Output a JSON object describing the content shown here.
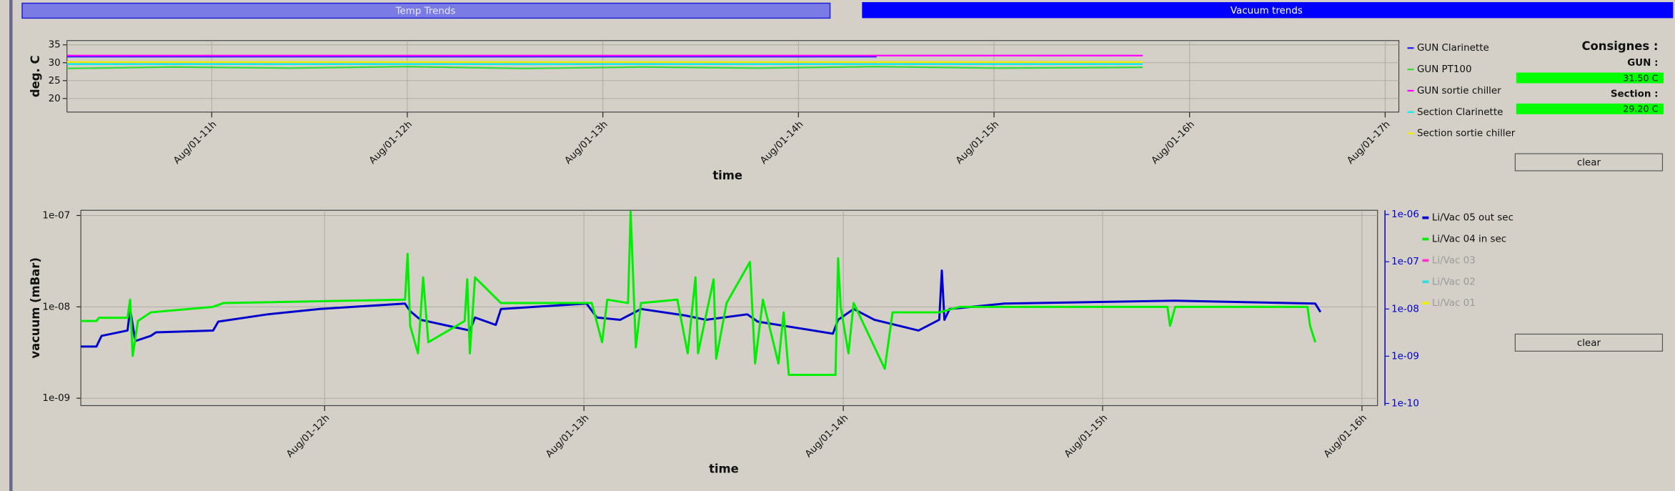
{
  "tabs": [
    "Temp Trends",
    "Vacuum trends"
  ],
  "setpoints": {
    "title": "Consignes :",
    "items": [
      {
        "label": "GUN :",
        "value": "31.50 C"
      },
      {
        "label": "Section :",
        "value": "29.20 C"
      }
    ]
  },
  "buttons": [
    "clear",
    "clear"
  ],
  "chart_data": [
    {
      "type": "line",
      "ylabel": "deg. C",
      "xlabel": "time",
      "grid": true,
      "xlim": [
        10.26,
        17.07
      ],
      "ylim": [
        16.2,
        36.2
      ],
      "yticks": [
        20,
        25,
        30,
        35
      ],
      "xticks": [
        {
          "value": 11,
          "label": "Aug/01-11h"
        },
        {
          "value": 12,
          "label": "Aug/01-12h"
        },
        {
          "value": 13,
          "label": "Aug/01-13h"
        },
        {
          "value": 14,
          "label": "Aug/01-14h"
        },
        {
          "value": 15,
          "label": "Aug/01-15h"
        },
        {
          "value": 16,
          "label": "Aug/01-16h"
        },
        {
          "value": 17,
          "label": "Aug/01-17h"
        }
      ],
      "series": [
        {
          "name": "GUN Clarinette",
          "color": "#2020ff",
          "x": [
            10.26,
            14.4
          ],
          "values": [
            31.7,
            31.7
          ]
        },
        {
          "name": "GUN PT100",
          "color": "#33dd33",
          "x": [
            10.26,
            10.8,
            11.4,
            12,
            12.6,
            13.2,
            13.8,
            14.4,
            15,
            15.76
          ],
          "values": [
            28.4,
            28.8,
            28.5,
            28.9,
            28.4,
            28.8,
            28.5,
            28.9,
            28.5,
            28.7
          ]
        },
        {
          "name": "GUN sortie chiller",
          "color": "#ff00ff",
          "x": [
            10.26,
            15.76
          ],
          "values": [
            32.0,
            32.0
          ]
        },
        {
          "name": "Section Clarinette",
          "color": "#00eeee",
          "x": [
            10.26,
            15.76
          ],
          "values": [
            29.6,
            29.6
          ]
        },
        {
          "name": "Section sortie chiller",
          "color": "#eeee00",
          "x": [
            10.26,
            15.76
          ],
          "values": [
            30.2,
            30.2
          ]
        }
      ]
    },
    {
      "type": "line",
      "ylabel": "vacuum (mBar)",
      "xlabel": "time",
      "grid": true,
      "ylog": true,
      "y2log": true,
      "xlim": [
        11.06,
        16.06
      ],
      "ylim": [
        8.3e-10,
        1.14e-07
      ],
      "y2lim": [
        9e-11,
        1.23e-06
      ],
      "yticks": [
        {
          "value": 1e-09,
          "label": "1e-09"
        },
        {
          "value": 1e-08,
          "label": "1e-08"
        },
        {
          "value": 1e-07,
          "label": "1e-07"
        }
      ],
      "y2ticks": [
        {
          "value": 1e-10,
          "label": "1e-10"
        },
        {
          "value": 1e-09,
          "label": "1e-09"
        },
        {
          "value": 1e-08,
          "label": "1e-08"
        },
        {
          "value": 1e-07,
          "label": "1e-07"
        },
        {
          "value": 1e-06,
          "label": "1e-06"
        }
      ],
      "y2color": "#0000cc",
      "xticks": [
        {
          "value": 12,
          "label": "Aug/01-12h"
        },
        {
          "value": 13,
          "label": "Aug/01-13h"
        },
        {
          "value": 14,
          "label": "Aug/01-14h"
        },
        {
          "value": 15,
          "label": "Aug/01-15h"
        },
        {
          "value": 16,
          "label": "Aug/01-16h"
        }
      ],
      "series": [
        {
          "name": "Li/Vac 05 out sec",
          "color": "#0000cc",
          "axis": "y2",
          "x": [
            11.06,
            11.12,
            11.14,
            11.24,
            11.25,
            11.27,
            11.33,
            11.35,
            11.57,
            11.59,
            11.78,
            11.98,
            12.31,
            12.33,
            12.37,
            12.56,
            12.58,
            12.66,
            12.68,
            13.01,
            13.05,
            13.14,
            13.22,
            13.39,
            13.47,
            13.63,
            13.67,
            13.96,
            13.98,
            14.04,
            14.12,
            14.29,
            14.37,
            14.38,
            14.39,
            14.41,
            14.62,
            15.28,
            15.82,
            15.84
          ],
          "values": [
            1.6e-09,
            1.6e-09,
            2.7e-09,
            3.5e-09,
            1e-08,
            2.1e-09,
            2.7e-09,
            3.2e-09,
            3.5e-09,
            5.4e-09,
            7.7e-09,
            1e-08,
            1.3e-08,
            9e-09,
            5.9e-09,
            3.5e-09,
            6.6e-09,
            4.6e-09,
            1e-08,
            1.3e-08,
            6.6e-09,
            5.9e-09,
            1e-08,
            7.3e-09,
            5.9e-09,
            7.7e-09,
            5.4e-09,
            3e-09,
            5.9e-09,
            1e-08,
            5.9e-09,
            3.5e-09,
            5.9e-09,
            6.5e-08,
            5.9e-09,
            1e-08,
            1.3e-08,
            1.5e-08,
            1.3e-08,
            8.6e-09
          ]
        },
        {
          "name": "Li/Vac 04 in sec",
          "color": "#00ee00",
          "x": [
            11.06,
            11.12,
            11.13,
            11.24,
            11.25,
            11.26,
            11.28,
            11.33,
            11.57,
            11.61,
            12.31,
            12.32,
            12.33,
            12.36,
            12.38,
            12.4,
            12.54,
            12.55,
            12.56,
            12.58,
            12.68,
            13.03,
            13.07,
            13.09,
            13.17,
            13.18,
            13.2,
            13.22,
            13.36,
            13.4,
            13.43,
            13.44,
            13.5,
            13.51,
            13.55,
            13.64,
            13.66,
            13.69,
            13.75,
            13.77,
            13.79,
            13.97,
            13.98,
            13.99,
            14.02,
            14.04,
            14.16,
            14.19,
            14.37,
            14.45,
            15.25,
            15.26,
            15.28,
            15.79,
            15.8,
            15.82
          ],
          "values": [
            7e-09,
            7e-09,
            7.6e-09,
            7.6e-09,
            1.2e-08,
            2.9e-09,
            7e-09,
            8.7e-09,
            1e-08,
            1.1e-08,
            1.2e-08,
            3.8e-08,
            6.2e-09,
            3.1e-09,
            2.1e-08,
            4.1e-09,
            7e-09,
            2e-08,
            3.1e-09,
            2.1e-08,
            1.1e-08,
            1.1e-08,
            4.1e-09,
            1.2e-08,
            1.1e-08,
            1.1e-07,
            3.6e-09,
            1.1e-08,
            1.2e-08,
            3.1e-09,
            2.1e-08,
            3.1e-09,
            2e-08,
            2.7e-09,
            1.1e-08,
            3.1e-08,
            2.4e-09,
            1.2e-08,
            2.4e-09,
            8.7e-09,
            1.8e-09,
            1.8e-09,
            3.4e-08,
            1e-08,
            3.1e-09,
            1.1e-08,
            2.1e-09,
            8.7e-09,
            8.7e-09,
            1e-08,
            1e-08,
            6.2e-09,
            1e-08,
            1e-08,
            6.2e-09,
            4.1e-09
          ]
        },
        {
          "name": "Li/Vac 03",
          "color": "#ff33cc",
          "enabled": false,
          "x": [],
          "values": []
        },
        {
          "name": "Li/Vac 02",
          "color": "#33dddd",
          "enabled": false,
          "x": [],
          "values": []
        },
        {
          "name": "Li/Vac 01",
          "color": "#eeee00",
          "enabled": false,
          "x": [],
          "values": []
        }
      ]
    }
  ]
}
